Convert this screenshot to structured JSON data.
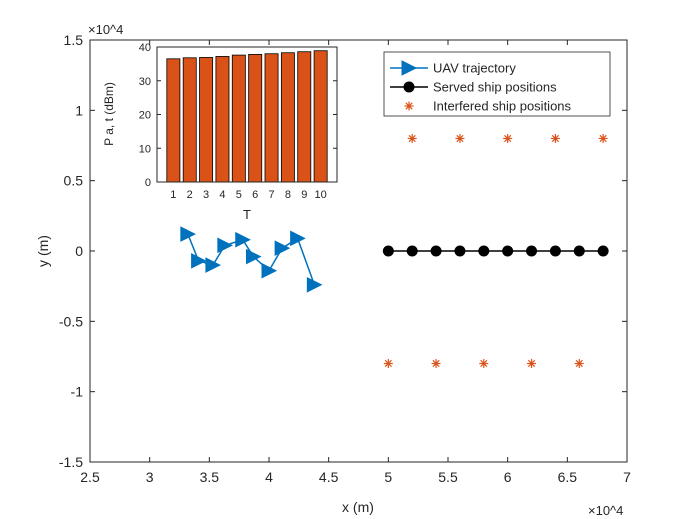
{
  "chart_data": [
    {
      "type": "line",
      "xlabel": "x (m)",
      "ylabel": "y (m)",
      "xlim": [
        25000,
        70000
      ],
      "ylim": [
        -15000,
        15000
      ],
      "x_exponent_label": "×10^4",
      "y_exponent_label": "×10^4",
      "x_ticks": [
        2.5,
        3,
        3.5,
        4,
        4.5,
        5,
        5.5,
        6,
        6.5,
        7
      ],
      "x_tick_labels": [
        "2.5",
        "3",
        "3.5",
        "4",
        "4.5",
        "5",
        "5.5",
        "6",
        "6.5",
        "7"
      ],
      "y_ticks": [
        -1.5,
        -1,
        -0.5,
        0,
        0.5,
        1,
        1.5
      ],
      "y_tick_labels": [
        "-1.5",
        "-1",
        "-0.5",
        "0",
        "0.5",
        "1",
        "1.5"
      ],
      "legend_position": "top-right",
      "series": [
        {
          "name": "UAV trajectory",
          "marker": "triangle-right",
          "color": "#0072BD",
          "x": [
            33200,
            34100,
            35300,
            36300,
            37800,
            38700,
            40000,
            41100,
            42400,
            43800
          ],
          "y": [
            1200,
            -700,
            -1000,
            400,
            800,
            -400,
            -1400,
            200,
            900,
            -2400
          ]
        },
        {
          "name": "Served ship positions",
          "marker": "circle",
          "color": "#000000",
          "x": [
            50000,
            52000,
            54000,
            56000,
            58000,
            60000,
            62000,
            64000,
            66000,
            68000
          ],
          "y": [
            0,
            0,
            0,
            0,
            0,
            0,
            0,
            0,
            0,
            0
          ]
        },
        {
          "name": "Interfered ship positions",
          "marker": "asterisk",
          "color": "#D95319",
          "x": [
            52000,
            56000,
            60000,
            64000,
            68000,
            50000,
            54000,
            58000,
            62000,
            66000
          ],
          "y": [
            8000,
            8000,
            8000,
            8000,
            8000,
            -8000,
            -8000,
            -8000,
            -8000,
            -8000
          ]
        }
      ]
    },
    {
      "type": "bar",
      "xlabel": "T",
      "ylabel": "P a, t (dBm)",
      "ylim": [
        0,
        40
      ],
      "y_ticks": [
        0,
        10,
        20,
        30,
        40
      ],
      "categories": [
        "1",
        "2",
        "3",
        "4",
        "5",
        "6",
        "7",
        "8",
        "9",
        "10"
      ],
      "values": [
        36.5,
        36.8,
        36.9,
        37.2,
        37.6,
        37.8,
        38.0,
        38.3,
        38.6,
        38.9
      ],
      "color": "#D95319"
    }
  ]
}
